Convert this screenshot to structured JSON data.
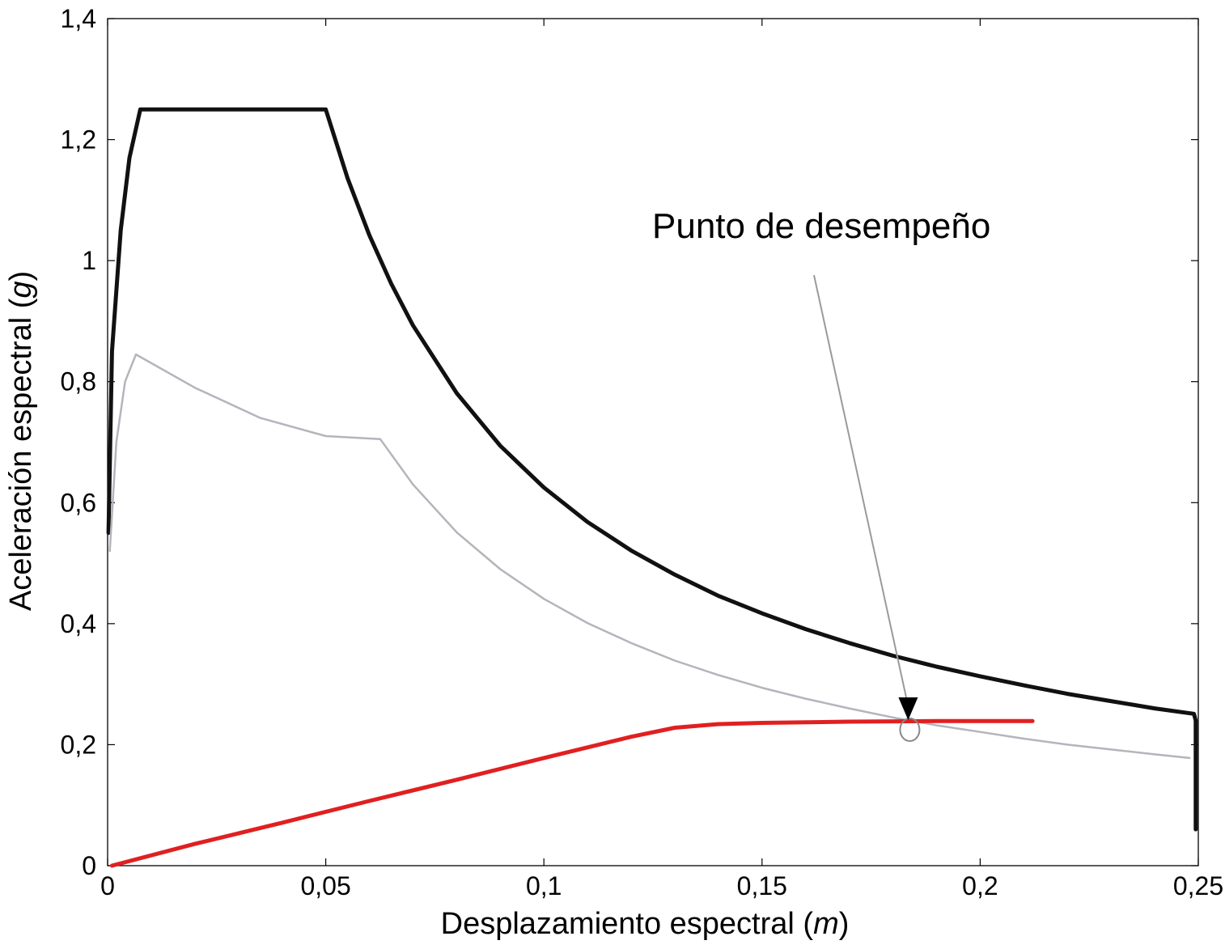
{
  "chart_data": {
    "type": "line",
    "xlabel": {
      "prefix": "Desplazamiento espectral (",
      "unit": "m",
      "suffix": ")"
    },
    "ylabel": {
      "prefix": "Aceleración espectral (",
      "unit": "g",
      "suffix": ")"
    },
    "xlim": [
      0,
      0.25
    ],
    "ylim": [
      0,
      1.4
    ],
    "xticks": [
      0,
      0.05,
      0.1,
      0.15,
      0.2,
      0.25
    ],
    "xtick_labels": [
      "0",
      "0,05",
      "0,1",
      "0,15",
      "0,2",
      "0,25"
    ],
    "yticks": [
      0,
      0.2,
      0.4,
      0.6,
      0.8,
      1.0,
      1.2,
      1.4
    ],
    "ytick_labels": [
      "0",
      "0,2",
      "0,4",
      "0,6",
      "0,8",
      "1",
      "1,2",
      "1,4"
    ],
    "grid": false,
    "series": [
      {
        "color": "#111111",
        "points": [
          [
            0.0002,
            0.55
          ],
          [
            0.001,
            0.85
          ],
          [
            0.003,
            1.05
          ],
          [
            0.005,
            1.17
          ],
          [
            0.0075,
            1.25
          ],
          [
            0.05,
            1.25
          ],
          [
            0.055,
            1.136
          ],
          [
            0.06,
            1.042
          ],
          [
            0.065,
            0.962
          ],
          [
            0.07,
            0.893
          ],
          [
            0.08,
            0.781
          ],
          [
            0.09,
            0.694
          ],
          [
            0.1,
            0.625
          ],
          [
            0.11,
            0.568
          ],
          [
            0.12,
            0.521
          ],
          [
            0.13,
            0.481
          ],
          [
            0.14,
            0.446
          ],
          [
            0.15,
            0.417
          ],
          [
            0.16,
            0.391
          ],
          [
            0.17,
            0.368
          ],
          [
            0.18,
            0.347
          ],
          [
            0.19,
            0.329
          ],
          [
            0.2,
            0.313
          ],
          [
            0.21,
            0.298
          ],
          [
            0.22,
            0.284
          ],
          [
            0.23,
            0.272
          ],
          [
            0.24,
            0.26
          ],
          [
            0.249,
            0.251
          ],
          [
            0.2494,
            0.24
          ],
          [
            0.2494,
            0.06
          ]
        ]
      },
      {
        "color": "#b4b4bc",
        "points": [
          [
            0.0005,
            0.52
          ],
          [
            0.002,
            0.7
          ],
          [
            0.004,
            0.8
          ],
          [
            0.0065,
            0.845
          ],
          [
            0.02,
            0.79
          ],
          [
            0.035,
            0.74
          ],
          [
            0.05,
            0.71
          ],
          [
            0.0625,
            0.705
          ],
          [
            0.07,
            0.63
          ],
          [
            0.08,
            0.551
          ],
          [
            0.09,
            0.49
          ],
          [
            0.1,
            0.441
          ],
          [
            0.11,
            0.401
          ],
          [
            0.12,
            0.368
          ],
          [
            0.13,
            0.339
          ],
          [
            0.14,
            0.315
          ],
          [
            0.15,
            0.294
          ],
          [
            0.16,
            0.276
          ],
          [
            0.17,
            0.26
          ],
          [
            0.18,
            0.245
          ],
          [
            0.19,
            0.232
          ],
          [
            0.2,
            0.221
          ],
          [
            0.21,
            0.21
          ],
          [
            0.22,
            0.2
          ],
          [
            0.23,
            0.192
          ],
          [
            0.24,
            0.184
          ],
          [
            0.248,
            0.178
          ]
        ]
      },
      {
        "color": "#e02020",
        "points": [
          [
            0.001,
            0.0
          ],
          [
            0.02,
            0.036
          ],
          [
            0.04,
            0.071
          ],
          [
            0.06,
            0.107
          ],
          [
            0.08,
            0.142
          ],
          [
            0.1,
            0.178
          ],
          [
            0.12,
            0.213
          ],
          [
            0.13,
            0.228
          ],
          [
            0.14,
            0.234
          ],
          [
            0.15,
            0.236
          ],
          [
            0.17,
            0.238
          ],
          [
            0.19,
            0.239
          ],
          [
            0.212,
            0.239
          ]
        ]
      }
    ],
    "annotation": {
      "text": "Punto de desempeño",
      "target": [
        0.1835,
        0.238
      ]
    }
  }
}
